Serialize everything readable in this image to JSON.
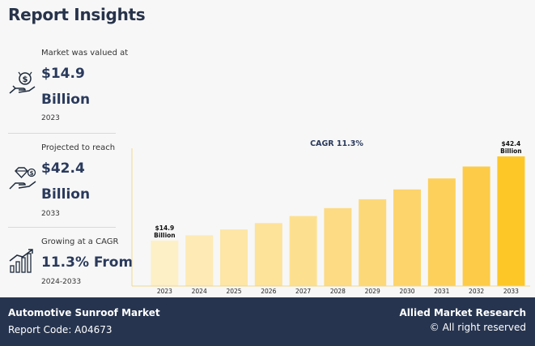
{
  "header": {
    "title": "Report Insights"
  },
  "stats": [
    {
      "caption": "Market was valued at",
      "value_line1": "$14.9",
      "value_line2": "Billion",
      "sub": "2023",
      "icon": "money-hand-icon"
    },
    {
      "caption": "Projected to reach",
      "value_line1": "$42.4",
      "value_line2": "Billion",
      "sub": "2033",
      "icon": "diamond-hand-icon"
    },
    {
      "caption": "Growing at a CAGR",
      "value_line1": "11.3% From",
      "sub": "2024-2033",
      "icon": "growth-chart-icon"
    }
  ],
  "chart_data": {
    "type": "bar",
    "title": "CAGR 11.3%",
    "categories": [
      "2023",
      "2024",
      "2025",
      "2026",
      "2027",
      "2028",
      "2029",
      "2030",
      "2031",
      "2032",
      "2033"
    ],
    "values": [
      14.9,
      16.6,
      18.5,
      20.6,
      22.9,
      25.5,
      28.4,
      31.6,
      35.2,
      39.1,
      42.4
    ],
    "ylim": [
      0,
      44
    ],
    "annotations": [
      {
        "category": "2023",
        "label": "$14.9 Billion"
      },
      {
        "category": "2033",
        "label": "$42.4 Billion"
      }
    ],
    "colors": [
      "#fdf0c7",
      "#fdeab5",
      "#fde6a6",
      "#fde29a",
      "#fde08f",
      "#fdda84",
      "#fdd878",
      "#fdd46c",
      "#fdd05c",
      "#fdcb47",
      "#fdc728"
    ],
    "axis_color": "#f0d78c",
    "grid": false
  },
  "footer": {
    "market_name": "Automotive Sunroof Market",
    "report_code": "Report Code: A04673",
    "brand": "Allied Market Research",
    "rights": "© All right reserved"
  }
}
